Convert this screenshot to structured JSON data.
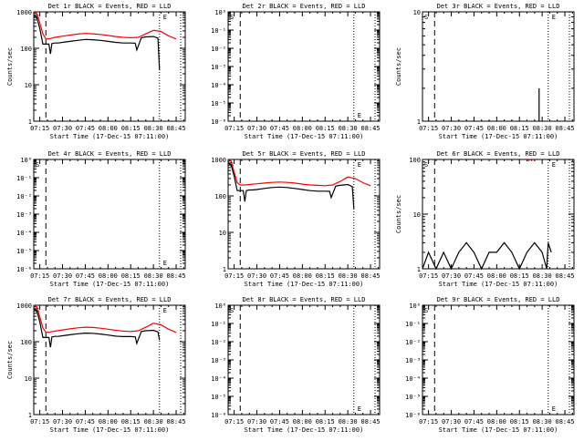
{
  "colors": {
    "background": "#ffffff",
    "events": "#000000",
    "lld": "#ff0000"
  },
  "shared": {
    "x_tick_labels": [
      "07:15",
      "07:30",
      "07:45",
      "08:00",
      "08:15",
      "08:30",
      "08:45"
    ],
    "start_time_label": "Start Time (17-Dec-15 07:11:00)",
    "ylabel": "Counts/sec",
    "s_label": "S",
    "e_label": "E"
  },
  "chart_data": [
    {
      "type": "line",
      "title": "Det 1r BLACK = Events, RED = LLD",
      "xlabel": "Start Time (17-Dec-15 07:11:00)",
      "ylabel": "Counts/sec",
      "yscale": "log",
      "ylim": [
        1,
        1000
      ],
      "y_tick_labels": [
        "1",
        "10",
        "100",
        "1000"
      ],
      "x_range": [
        "07:11",
        "08:51"
      ],
      "markers": {
        "dashed": "07:19",
        "dotted": [
          "08:34",
          "08:48"
        ]
      },
      "series": [
        {
          "color": "#ff0000",
          "x": [
            "07:11",
            "07:13",
            "07:15",
            "07:17",
            "07:19",
            "07:22",
            "07:25",
            "07:30",
            "07:35",
            "07:40",
            "07:45",
            "07:50",
            "07:55",
            "08:00",
            "08:05",
            "08:10",
            "08:15",
            "08:20",
            "08:25",
            "08:30",
            "08:35",
            "08:40",
            "08:45"
          ],
          "values": [
            1000,
            900,
            500,
            250,
            180,
            185,
            200,
            215,
            230,
            245,
            255,
            250,
            240,
            225,
            210,
            200,
            195,
            200,
            250,
            310,
            290,
            220,
            180
          ]
        },
        {
          "color": "#000000",
          "x": [
            "07:11",
            "07:13",
            "07:15",
            "07:17",
            "07:19",
            "07:21",
            "07:22",
            "07:23",
            "07:25",
            "07:27",
            "07:30",
            "07:35",
            "07:40",
            "07:45",
            "07:50",
            "07:55",
            "08:00",
            "08:05",
            "08:10",
            "08:15",
            "08:18",
            "08:19",
            "08:22",
            "08:25",
            "08:30",
            "08:33",
            "08:34"
          ],
          "values": [
            800,
            700,
            350,
            130,
            130,
            130,
            70,
            135,
            140,
            140,
            145,
            155,
            165,
            175,
            172,
            165,
            155,
            145,
            140,
            140,
            138,
            90,
            195,
            205,
            210,
            190,
            25
          ]
        }
      ]
    },
    {
      "type": "line",
      "title": "Det 2r BLACK = Events, RED = LLD",
      "xlabel": "Start Time (17-Dec-15 07:11:00)",
      "ylabel": "",
      "yscale": "log",
      "ylim": [
        1e-06,
        1
      ],
      "y_tick_labels": [
        "10⁻⁶",
        "10⁻⁵",
        "10⁻⁴",
        "10⁻³",
        "10⁻²",
        "10⁻¹",
        "10⁰"
      ],
      "x_range": [
        "07:11",
        "08:51"
      ],
      "markers": {
        "dashed": "07:19",
        "dotted": [
          "08:34",
          "08:48"
        ]
      },
      "series": []
    },
    {
      "type": "line",
      "title": "Det 3r BLACK = Events, RED = LLD",
      "xlabel": "Start Time (17-Dec-15 07:11:00)",
      "ylabel": "Counts/sec",
      "yscale": "log",
      "ylim": [
        1,
        10
      ],
      "y_tick_labels": [
        "1",
        "10"
      ],
      "x_range": [
        "07:11",
        "08:51"
      ],
      "markers": {
        "dashed": "07:19",
        "dotted": [
          "08:34",
          "08:48"
        ]
      },
      "series": [
        {
          "color": "#000000",
          "x": [
            "08:28",
            "08:28",
            "08:28"
          ],
          "values": [
            1,
            2,
            1
          ]
        }
      ]
    },
    {
      "type": "line",
      "title": "Det 4r BLACK = Events, RED = LLD",
      "xlabel": "Start Time (17-Dec-15 07:11:00)",
      "ylabel": "",
      "yscale": "log",
      "ylim": [
        1e-06,
        1
      ],
      "y_tick_labels": [
        "10⁻⁶",
        "10⁻⁵",
        "10⁻⁴",
        "10⁻³",
        "10⁻²",
        "10⁻¹",
        "10⁰"
      ],
      "x_range": [
        "07:11",
        "08:51"
      ],
      "markers": {
        "dashed": "07:19",
        "dotted": [
          "08:34",
          "08:48"
        ]
      },
      "series": []
    },
    {
      "type": "line",
      "title": "Det 5r BLACK = Events, RED = LLD",
      "xlabel": "Start Time (17-Dec-15 07:11:00)",
      "ylabel": "",
      "yscale": "log",
      "ylim": [
        1,
        1000
      ],
      "y_tick_labels": [
        "1",
        "10",
        "100",
        "1000"
      ],
      "x_range": [
        "07:11",
        "08:51"
      ],
      "markers": {
        "dashed": "07:19",
        "dotted": [
          "08:34",
          "08:48"
        ]
      },
      "series": [
        {
          "color": "#ff0000",
          "x": [
            "07:11",
            "07:13",
            "07:15",
            "07:17",
            "07:19",
            "07:22",
            "07:25",
            "07:30",
            "07:35",
            "07:40",
            "07:45",
            "07:50",
            "07:55",
            "08:00",
            "08:05",
            "08:10",
            "08:15",
            "08:20",
            "08:25",
            "08:30",
            "08:35",
            "08:40",
            "08:45"
          ],
          "values": [
            1000,
            900,
            450,
            230,
            200,
            200,
            205,
            215,
            225,
            235,
            240,
            235,
            225,
            210,
            200,
            195,
            190,
            200,
            250,
            330,
            300,
            230,
            190
          ]
        },
        {
          "color": "#000000",
          "x": [
            "07:11",
            "07:13",
            "07:15",
            "07:17",
            "07:19",
            "07:21",
            "07:22",
            "07:23",
            "07:25",
            "07:27",
            "07:30",
            "07:35",
            "07:40",
            "07:45",
            "07:50",
            "07:55",
            "08:00",
            "08:05",
            "08:10",
            "08:15",
            "08:18",
            "08:19",
            "08:22",
            "08:25",
            "08:30",
            "08:33",
            "08:34"
          ],
          "values": [
            800,
            700,
            350,
            140,
            140,
            140,
            70,
            140,
            145,
            145,
            150,
            160,
            170,
            175,
            170,
            160,
            150,
            140,
            135,
            135,
            133,
            90,
            185,
            195,
            205,
            180,
            45
          ]
        }
      ]
    },
    {
      "type": "line",
      "title": "Det 6r BLACK = Events, RED = LLD",
      "xlabel": "Start Time (17-Dec-15 07:11:00)",
      "ylabel": "Counts/sec",
      "yscale": "log",
      "ylim": [
        1,
        100
      ],
      "y_tick_labels": [
        "1",
        "10",
        "100"
      ],
      "x_range": [
        "07:11",
        "08:51"
      ],
      "markers": {
        "dashed": "07:19",
        "dotted": [
          "08:34",
          "08:48"
        ]
      },
      "series": [
        {
          "color": "#ff0000",
          "x": [
            "08:20",
            "08:21",
            "08:22",
            "08:23",
            "08:24"
          ],
          "values": [
            100,
            96,
            100,
            96,
            100
          ]
        },
        {
          "color": "#000000",
          "x": [
            "07:11",
            "07:15",
            "07:20",
            "07:25",
            "07:30",
            "07:35",
            "07:40",
            "07:45",
            "07:50",
            "07:55",
            "08:00",
            "08:05",
            "08:10",
            "08:15",
            "08:20",
            "08:25",
            "08:30",
            "08:33",
            "08:34",
            "08:36"
          ],
          "values": [
            1,
            2,
            1,
            2,
            1,
            2,
            3,
            2,
            1,
            2,
            2,
            3,
            2,
            1,
            2,
            3,
            2,
            1,
            3,
            2
          ]
        }
      ]
    },
    {
      "type": "line",
      "title": "Det 7r BLACK = Events, RED = LLD",
      "xlabel": "Start Time (17-Dec-15 07:11:00)",
      "ylabel": "Counts/sec",
      "yscale": "log",
      "ylim": [
        1,
        1000
      ],
      "y_tick_labels": [
        "1",
        "10",
        "100",
        "1000"
      ],
      "x_range": [
        "07:11",
        "08:51"
      ],
      "markers": {
        "dashed": "07:19",
        "dotted": [
          "08:34",
          "08:48"
        ]
      },
      "series": [
        {
          "color": "#ff0000",
          "x": [
            "07:11",
            "07:13",
            "07:15",
            "07:17",
            "07:19",
            "07:22",
            "07:25",
            "07:30",
            "07:35",
            "07:40",
            "07:45",
            "07:50",
            "07:55",
            "08:00",
            "08:05",
            "08:10",
            "08:15",
            "08:20",
            "08:25",
            "08:30",
            "08:35",
            "08:40",
            "08:45"
          ],
          "values": [
            1000,
            900,
            480,
            240,
            180,
            185,
            195,
            210,
            225,
            240,
            250,
            245,
            235,
            220,
            205,
            195,
            190,
            200,
            250,
            320,
            290,
            220,
            180
          ]
        },
        {
          "color": "#000000",
          "x": [
            "07:11",
            "07:13",
            "07:15",
            "07:17",
            "07:19",
            "07:21",
            "07:22",
            "07:23",
            "07:25",
            "07:27",
            "07:30",
            "07:35",
            "07:40",
            "07:45",
            "07:50",
            "07:55",
            "08:00",
            "08:05",
            "08:10",
            "08:15",
            "08:18",
            "08:19",
            "08:22",
            "08:25",
            "08:30",
            "08:33",
            "08:34"
          ],
          "values": [
            800,
            700,
            350,
            130,
            130,
            130,
            70,
            135,
            140,
            140,
            145,
            155,
            165,
            172,
            170,
            162,
            152,
            142,
            138,
            138,
            136,
            90,
            190,
            200,
            205,
            185,
            110
          ]
        }
      ]
    },
    {
      "type": "line",
      "title": "Det 8r BLACK = Events, RED = LLD",
      "xlabel": "Start Time (17-Dec-15 07:11:00)",
      "ylabel": "",
      "yscale": "log",
      "ylim": [
        1e-06,
        1
      ],
      "y_tick_labels": [
        "10⁻⁶",
        "10⁻⁵",
        "10⁻⁴",
        "10⁻³",
        "10⁻²",
        "10⁻¹",
        "10⁰"
      ],
      "x_range": [
        "07:11",
        "08:51"
      ],
      "markers": {
        "dashed": "07:19",
        "dotted": [
          "08:34",
          "08:48"
        ]
      },
      "series": []
    },
    {
      "type": "line",
      "title": "Det 9r BLACK = Events, RED = LLD",
      "xlabel": "Start Time (17-Dec-15 07:11:00)",
      "ylabel": "",
      "yscale": "log",
      "ylim": [
        1e-06,
        1
      ],
      "y_tick_labels": [
        "10⁻⁶",
        "10⁻⁵",
        "10⁻⁴",
        "10⁻³",
        "10⁻²",
        "10⁻¹",
        "10⁰"
      ],
      "x_range": [
        "07:11",
        "08:51"
      ],
      "markers": {
        "dashed": "07:19",
        "dotted": [
          "08:34",
          "08:48"
        ]
      },
      "series": []
    }
  ]
}
